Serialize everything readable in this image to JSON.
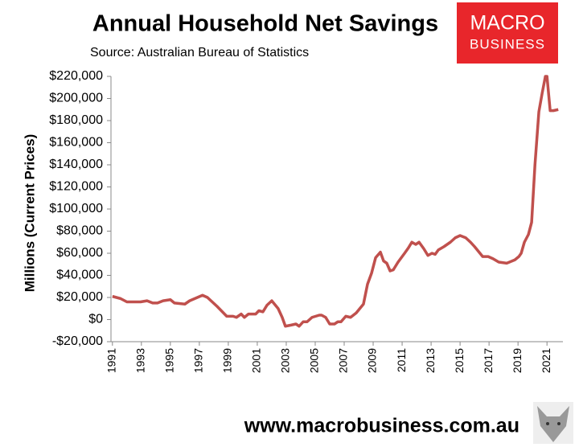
{
  "chart_data": {
    "type": "line",
    "title": "Annual Household Net Savings",
    "subtitle": "Source: Australian Bureau of Statistics",
    "ylabel": "Millions (Current Prices)",
    "logo": {
      "line1": "MACRO",
      "line2": "BUSINESS"
    },
    "footer": "www.macrobusiness.com.au",
    "x": [
      1991.0,
      1991.56,
      1992.0,
      1992.94,
      1993.39,
      1993.78,
      1994.11,
      1994.5,
      1995.0,
      1995.28,
      1996.0,
      1996.33,
      1997.22,
      1997.56,
      1998.22,
      1998.89,
      1999.33,
      1999.56,
      1999.89,
      2000.11,
      2000.39,
      2000.89,
      2001.11,
      2001.39,
      2001.67,
      2002.0,
      2002.44,
      2002.72,
      2002.94,
      2003.33,
      2003.67,
      2003.89,
      2004.17,
      2004.44,
      2004.78,
      2005.28,
      2005.44,
      2005.72,
      2006.0,
      2006.33,
      2006.56,
      2006.78,
      2007.11,
      2007.44,
      2007.83,
      2008.33,
      2008.61,
      2008.89,
      2009.17,
      2009.5,
      2009.72,
      2009.94,
      2010.17,
      2010.39,
      2010.72,
      2011.17,
      2011.44,
      2011.67,
      2011.94,
      2012.17,
      2012.5,
      2012.78,
      2013.06,
      2013.28,
      2013.5,
      2013.89,
      2014.33,
      2014.67,
      2015.0,
      2015.39,
      2015.72,
      2016.0,
      2016.56,
      2016.94,
      2017.28,
      2017.67,
      2018.22,
      2018.78,
      2019.06,
      2019.22,
      2019.44,
      2019.72,
      2019.94,
      2020.17,
      2020.44,
      2020.67,
      2020.89,
      2021.0,
      2021.22,
      2021.44,
      2021.78
    ],
    "series": [
      {
        "color": "#c0504d",
        "values": [
          21000,
          19000,
          16000,
          16000,
          17000,
          15000,
          15000,
          17000,
          18000,
          15000,
          14000,
          17000,
          22000,
          20000,
          12000,
          3000,
          3000,
          2000,
          5000,
          2000,
          5000,
          5000,
          8000,
          7000,
          13000,
          17000,
          10000,
          2000,
          -6000,
          -5000,
          -4000,
          -6000,
          -2000,
          -2000,
          2000,
          4000,
          4000,
          2000,
          -4000,
          -4000,
          -2000,
          -2000,
          3000,
          2000,
          6000,
          14000,
          32000,
          42000,
          56000,
          61000,
          53000,
          51000,
          44000,
          45000,
          52000,
          60000,
          65000,
          70000,
          68000,
          70000,
          64000,
          58000,
          60000,
          59000,
          63000,
          66000,
          70000,
          74000,
          76000,
          74000,
          70000,
          66000,
          57000,
          57000,
          55000,
          52000,
          51000,
          54000,
          57000,
          60000,
          70000,
          77000,
          88000,
          140000,
          188000,
          205000,
          220000,
          220000,
          189000,
          189000,
          190000
        ]
      }
    ],
    "xlim": [
      1990.9,
      2022.1
    ],
    "xticks": [
      1991,
      1993,
      1995,
      1997,
      1999,
      2001,
      2003,
      2005,
      2007,
      2009,
      2011,
      2013,
      2015,
      2017,
      2019,
      2021
    ],
    "ylim": [
      -20000,
      220000
    ],
    "yticks": [
      {
        "value": -20000,
        "label": "-$20,000"
      },
      {
        "value": 0,
        "label": "$0"
      },
      {
        "value": 20000,
        "label": "$20,000"
      },
      {
        "value": 40000,
        "label": "$40,000"
      },
      {
        "value": 60000,
        "label": "$60,000"
      },
      {
        "value": 80000,
        "label": "$80,000"
      },
      {
        "value": 100000,
        "label": "$100,000"
      },
      {
        "value": 120000,
        "label": "$120,000"
      },
      {
        "value": 140000,
        "label": "$140,000"
      },
      {
        "value": 160000,
        "label": "$160,000"
      },
      {
        "value": 180000,
        "label": "$180,000"
      },
      {
        "value": 200000,
        "label": "$200,000"
      },
      {
        "value": 220000,
        "label": "$220,000"
      }
    ],
    "grid": false
  }
}
